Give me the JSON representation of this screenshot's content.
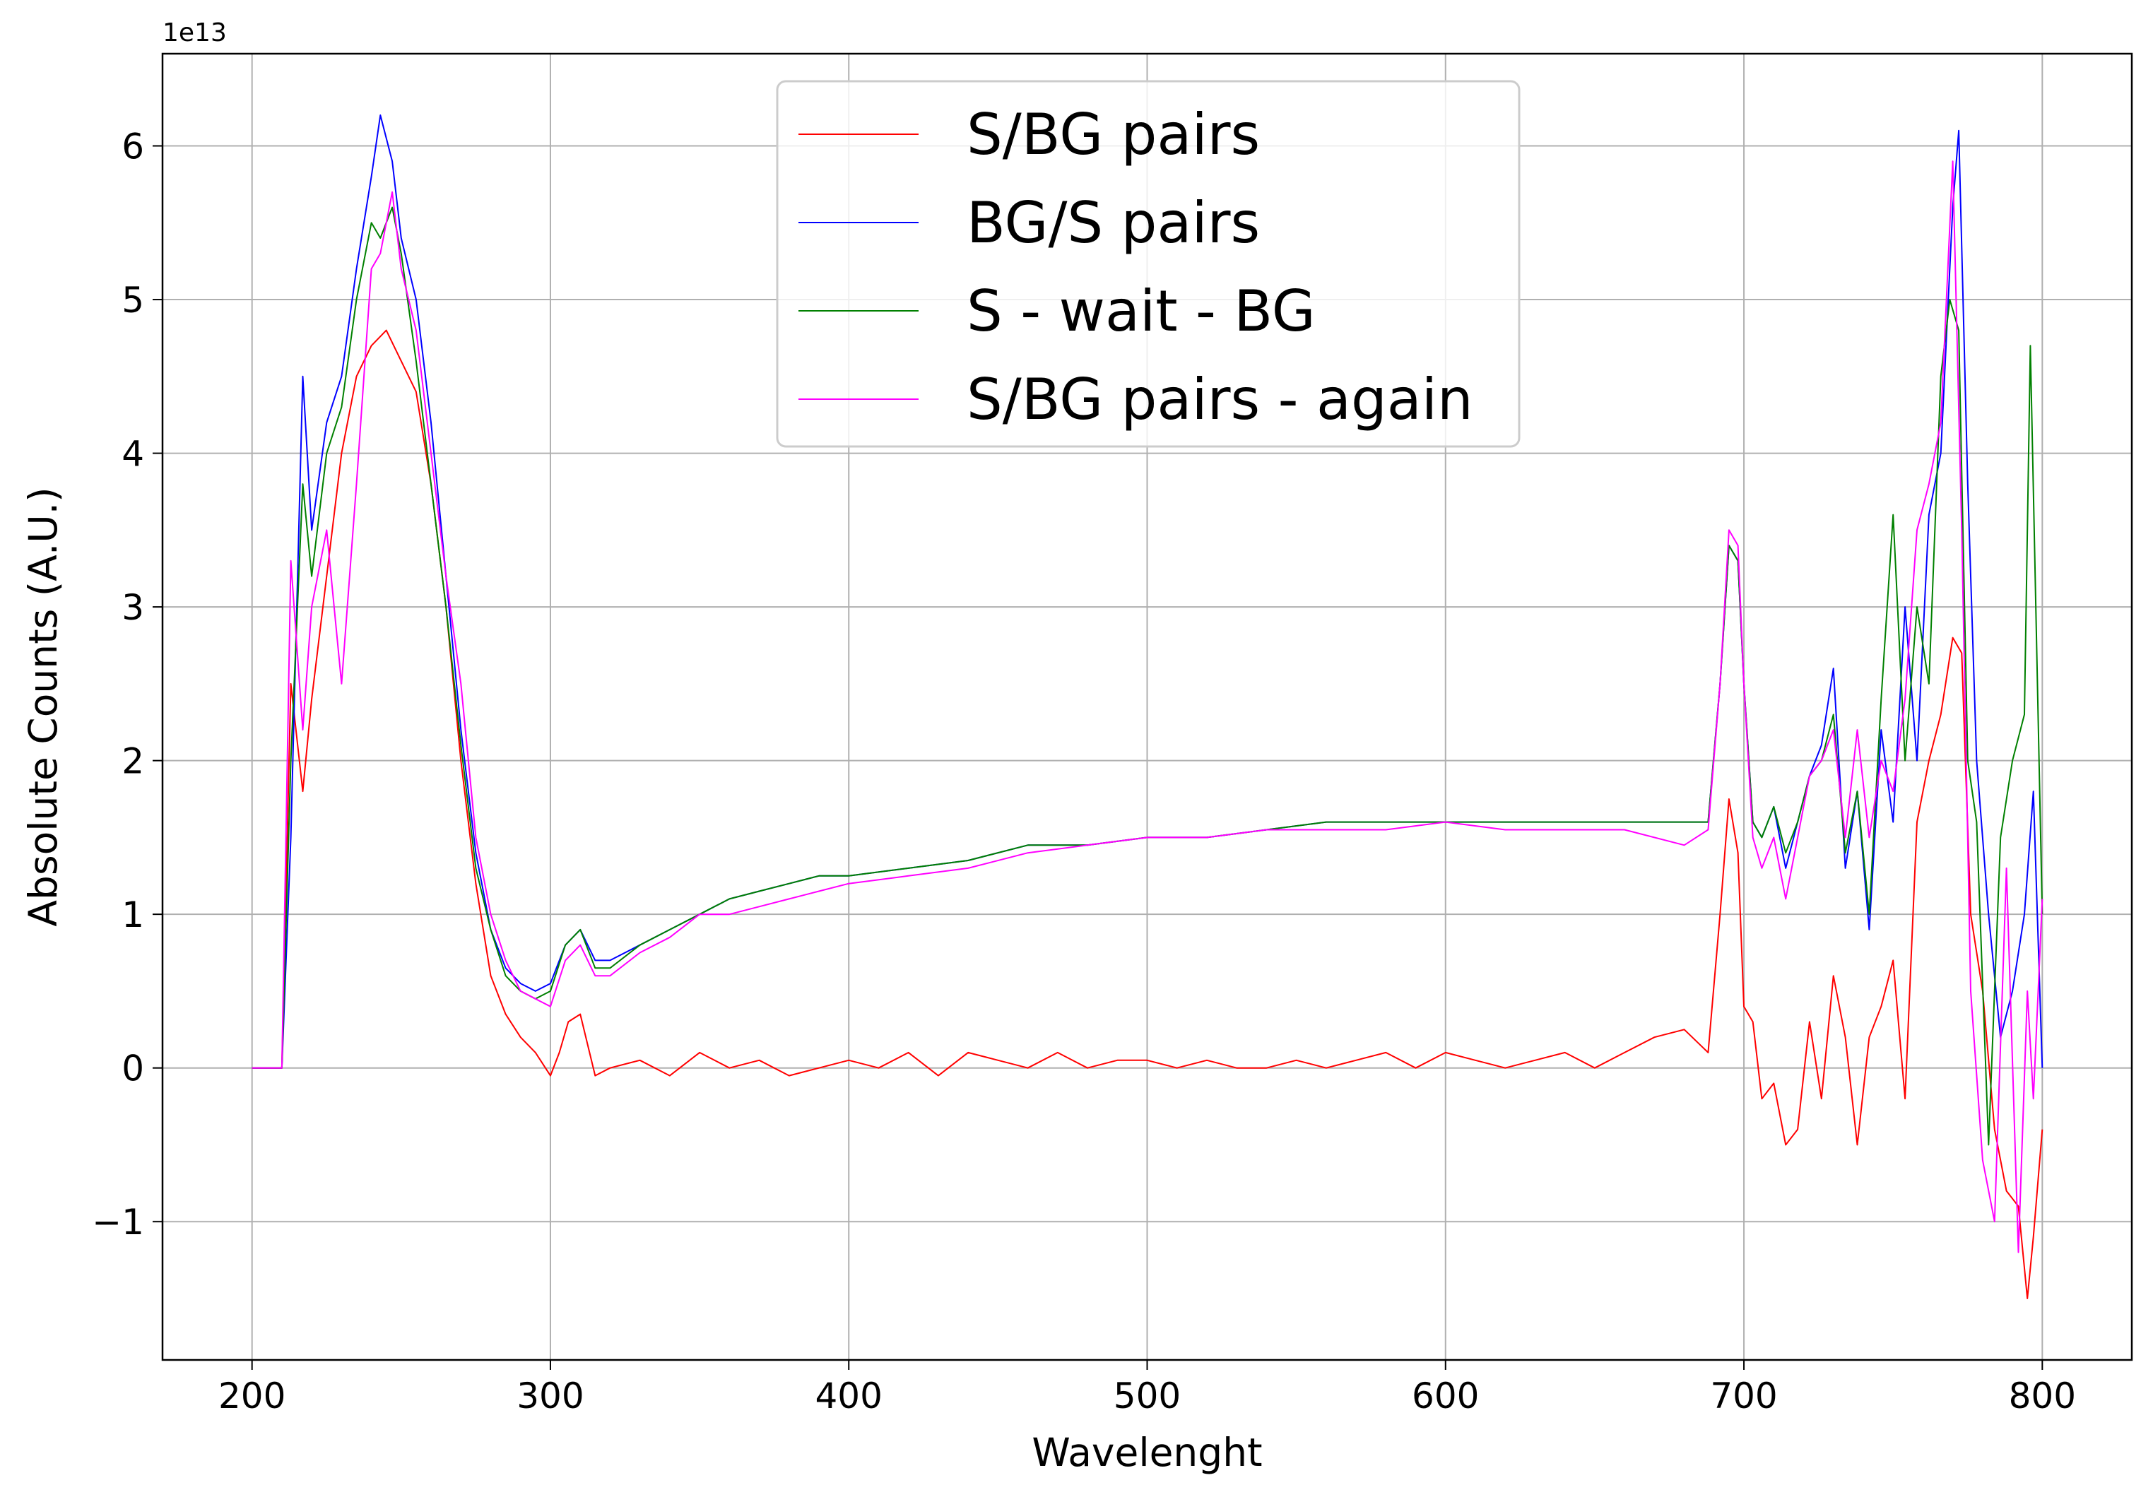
{
  "chart_data": {
    "type": "line",
    "title": "",
    "xlabel": "Wavelenght",
    "ylabel": "Absolute Counts (A.U.)",
    "y_offset_label": "1e13",
    "xlim": [
      170,
      830
    ],
    "ylim": [
      -1.9,
      6.6
    ],
    "x_ticks": [
      200,
      300,
      400,
      500,
      600,
      700,
      800
    ],
    "x_tick_labels": [
      "200",
      "300",
      "400",
      "500",
      "600",
      "700",
      "800"
    ],
    "y_ticks": [
      -1,
      0,
      1,
      2,
      3,
      4,
      5,
      6
    ],
    "y_tick_labels": [
      "−1",
      "0",
      "1",
      "2",
      "3",
      "4",
      "5",
      "6"
    ],
    "grid": true,
    "legend_position": "upper-center",
    "series": [
      {
        "name": "S/BG pairs",
        "color": "#ff0000",
        "x": [
          200,
          210,
          213,
          217,
          220,
          225,
          230,
          235,
          240,
          245,
          250,
          255,
          260,
          265,
          270,
          275,
          280,
          285,
          290,
          295,
          300,
          303,
          306,
          310,
          315,
          320,
          330,
          340,
          350,
          360,
          370,
          380,
          390,
          400,
          410,
          420,
          430,
          440,
          450,
          460,
          470,
          480,
          490,
          500,
          510,
          520,
          530,
          540,
          550,
          560,
          570,
          580,
          590,
          600,
          610,
          620,
          630,
          640,
          650,
          660,
          670,
          680,
          688,
          692,
          695,
          698,
          700,
          703,
          706,
          710,
          714,
          718,
          722,
          726,
          730,
          734,
          738,
          742,
          746,
          750,
          754,
          758,
          762,
          766,
          770,
          773,
          776,
          780,
          784,
          788,
          792,
          795,
          797,
          800
        ],
        "values": [
          0,
          0,
          2.5,
          1.8,
          2.4,
          3.2,
          4.0,
          4.5,
          4.7,
          4.8,
          4.6,
          4.4,
          3.8,
          3.0,
          2.0,
          1.2,
          0.6,
          0.35,
          0.2,
          0.1,
          -0.05,
          0.1,
          0.3,
          0.35,
          -0.05,
          0.0,
          0.05,
          -0.05,
          0.1,
          0.0,
          0.05,
          -0.05,
          0.0,
          0.05,
          0.0,
          0.1,
          -0.05,
          0.1,
          0.05,
          0.0,
          0.1,
          0.0,
          0.05,
          0.05,
          0.0,
          0.05,
          0.0,
          0.0,
          0.05,
          0.0,
          0.05,
          0.1,
          0.0,
          0.1,
          0.05,
          0.0,
          0.05,
          0.1,
          0.0,
          0.1,
          0.2,
          0.25,
          0.1,
          1.0,
          1.75,
          1.4,
          0.4,
          0.3,
          -0.2,
          -0.1,
          -0.5,
          -0.4,
          0.3,
          -0.2,
          0.6,
          0.2,
          -0.5,
          0.2,
          0.4,
          0.7,
          -0.2,
          1.6,
          2.0,
          2.3,
          2.8,
          2.7,
          1.0,
          0.5,
          -0.4,
          -0.8,
          -0.9,
          -1.5,
          -1.1,
          -0.4
        ]
      },
      {
        "name": "BG/S pairs",
        "color": "#0000ff",
        "x": [
          200,
          210,
          213,
          217,
          220,
          225,
          230,
          235,
          240,
          243,
          247,
          250,
          255,
          260,
          265,
          270,
          275,
          280,
          285,
          290,
          295,
          300,
          305,
          310,
          315,
          320,
          330,
          340,
          350,
          360,
          370,
          380,
          390,
          400,
          420,
          440,
          460,
          480,
          500,
          520,
          540,
          560,
          580,
          600,
          620,
          640,
          660,
          680,
          688,
          692,
          695,
          698,
          700,
          703,
          706,
          710,
          714,
          718,
          722,
          726,
          730,
          734,
          738,
          742,
          746,
          750,
          754,
          758,
          762,
          766,
          770,
          772,
          775,
          778,
          782,
          786,
          790,
          794,
          797,
          800
        ],
        "values": [
          0,
          0,
          1.5,
          4.5,
          3.5,
          4.2,
          4.5,
          5.2,
          5.8,
          6.2,
          5.9,
          5.4,
          5.0,
          4.2,
          3.2,
          2.2,
          1.4,
          0.9,
          0.65,
          0.55,
          0.5,
          0.55,
          0.8,
          0.9,
          0.7,
          0.7,
          0.8,
          0.9,
          1.0,
          1.1,
          1.15,
          1.2,
          1.25,
          1.25,
          1.3,
          1.35,
          1.45,
          1.45,
          1.5,
          1.5,
          1.55,
          1.6,
          1.6,
          1.6,
          1.6,
          1.6,
          1.6,
          1.6,
          1.6,
          2.5,
          3.4,
          3.3,
          2.5,
          1.6,
          1.5,
          1.7,
          1.3,
          1.6,
          1.9,
          2.1,
          2.6,
          1.3,
          1.8,
          0.9,
          2.2,
          1.6,
          3.0,
          2.0,
          3.6,
          4.0,
          5.6,
          6.1,
          3.8,
          2.0,
          1.0,
          0.2,
          0.5,
          1.0,
          1.8,
          0.0
        ]
      },
      {
        "name": "S - wait - BG",
        "color": "#008000",
        "x": [
          200,
          210,
          213,
          217,
          220,
          225,
          230,
          235,
          240,
          243,
          247,
          250,
          255,
          260,
          265,
          270,
          275,
          280,
          285,
          290,
          295,
          300,
          305,
          310,
          315,
          320,
          330,
          340,
          350,
          360,
          370,
          380,
          390,
          400,
          420,
          440,
          460,
          480,
          500,
          520,
          540,
          560,
          580,
          600,
          620,
          640,
          660,
          680,
          688,
          692,
          695,
          698,
          700,
          703,
          706,
          710,
          714,
          718,
          722,
          726,
          730,
          734,
          738,
          742,
          746,
          750,
          754,
          758,
          762,
          766,
          769,
          772,
          775,
          778,
          782,
          786,
          790,
          794,
          796,
          800
        ],
        "values": [
          0,
          0,
          2.0,
          3.8,
          3.2,
          4.0,
          4.3,
          5.0,
          5.5,
          5.4,
          5.6,
          5.3,
          4.6,
          3.8,
          3.0,
          2.1,
          1.3,
          0.9,
          0.6,
          0.5,
          0.45,
          0.5,
          0.8,
          0.9,
          0.65,
          0.65,
          0.8,
          0.9,
          1.0,
          1.1,
          1.15,
          1.2,
          1.25,
          1.25,
          1.3,
          1.35,
          1.45,
          1.45,
          1.5,
          1.5,
          1.55,
          1.6,
          1.6,
          1.6,
          1.6,
          1.6,
          1.6,
          1.6,
          1.6,
          2.5,
          3.4,
          3.3,
          2.5,
          1.6,
          1.5,
          1.7,
          1.4,
          1.6,
          1.9,
          2.0,
          2.3,
          1.4,
          1.8,
          1.0,
          2.4,
          3.6,
          2.0,
          3.0,
          2.5,
          4.5,
          5.0,
          4.8,
          2.0,
          1.6,
          -0.5,
          1.5,
          2.0,
          2.3,
          4.7,
          1.0
        ]
      },
      {
        "name": "S/BG pairs - again",
        "color": "#ff00ff",
        "x": [
          200,
          210,
          213,
          217,
          220,
          225,
          230,
          235,
          240,
          243,
          247,
          250,
          255,
          260,
          265,
          270,
          275,
          280,
          285,
          290,
          295,
          300,
          305,
          310,
          315,
          320,
          330,
          340,
          350,
          360,
          370,
          380,
          390,
          400,
          420,
          440,
          460,
          480,
          500,
          520,
          540,
          560,
          580,
          600,
          620,
          640,
          660,
          680,
          688,
          692,
          695,
          698,
          700,
          703,
          706,
          710,
          714,
          718,
          722,
          726,
          730,
          734,
          738,
          742,
          746,
          750,
          754,
          758,
          762,
          766,
          770,
          773,
          776,
          780,
          784,
          788,
          792,
          795,
          797,
          800
        ],
        "values": [
          0,
          0,
          3.3,
          2.2,
          3.0,
          3.5,
          2.5,
          3.8,
          5.2,
          5.3,
          5.7,
          5.2,
          4.8,
          4.0,
          3.2,
          2.5,
          1.5,
          1.0,
          0.7,
          0.5,
          0.45,
          0.4,
          0.7,
          0.8,
          0.6,
          0.6,
          0.75,
          0.85,
          1.0,
          1.0,
          1.05,
          1.1,
          1.15,
          1.2,
          1.25,
          1.3,
          1.4,
          1.45,
          1.5,
          1.5,
          1.55,
          1.55,
          1.55,
          1.6,
          1.55,
          1.55,
          1.55,
          1.45,
          1.55,
          2.5,
          3.5,
          3.4,
          2.5,
          1.5,
          1.3,
          1.5,
          1.1,
          1.5,
          1.9,
          2.0,
          2.2,
          1.5,
          2.2,
          1.5,
          2.0,
          1.8,
          2.4,
          3.5,
          3.8,
          4.2,
          5.9,
          3.5,
          0.5,
          -0.6,
          -1.0,
          1.3,
          -1.2,
          0.5,
          -0.2,
          1.1
        ]
      }
    ]
  }
}
